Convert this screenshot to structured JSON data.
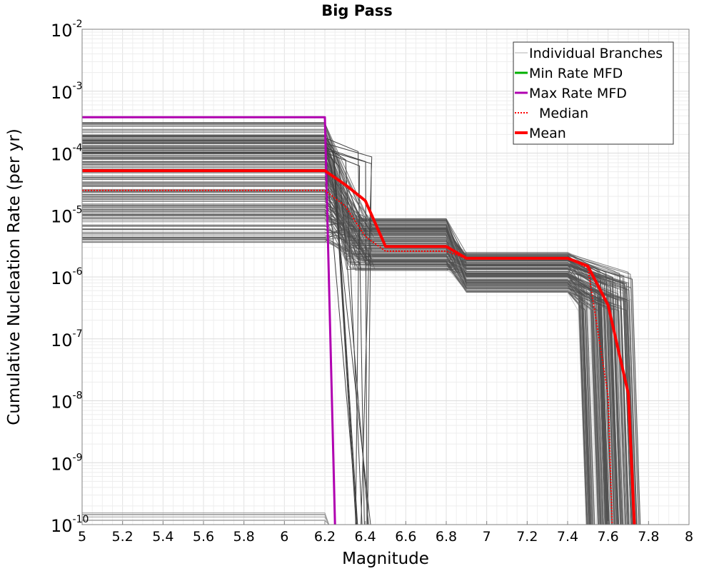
{
  "chart_data": {
    "type": "line",
    "title": "Big Pass",
    "xlabel": "Magnitude",
    "ylabel": "Cumulative Nucleation Rate (per yr)",
    "xlim": [
      5,
      8
    ],
    "ylim_log10": [
      -10,
      -2
    ],
    "yscale": "log",
    "grid": true,
    "legend_position": "top-right",
    "x_ticks": [
      {
        "value": 5.0,
        "label": "5"
      },
      {
        "value": 5.2,
        "label": "5.2"
      },
      {
        "value": 5.4,
        "label": "5.4"
      },
      {
        "value": 5.6,
        "label": "5.6"
      },
      {
        "value": 5.8,
        "label": "5.8"
      },
      {
        "value": 6.0,
        "label": "6"
      },
      {
        "value": 6.2,
        "label": "6.2"
      },
      {
        "value": 6.4,
        "label": "6.4"
      },
      {
        "value": 6.6,
        "label": "6.6"
      },
      {
        "value": 6.8,
        "label": "6.8"
      },
      {
        "value": 7.0,
        "label": "7"
      },
      {
        "value": 7.2,
        "label": "7.2"
      },
      {
        "value": 7.4,
        "label": "7.4"
      },
      {
        "value": 7.6,
        "label": "7.6"
      },
      {
        "value": 7.8,
        "label": "7.8"
      },
      {
        "value": 8.0,
        "label": "8"
      }
    ],
    "y_ticks": [
      {
        "exp": -2,
        "base": "10",
        "sup": "-2"
      },
      {
        "exp": -3,
        "base": "10",
        "sup": "-3"
      },
      {
        "exp": -4,
        "base": "10",
        "sup": "-4"
      },
      {
        "exp": -5,
        "base": "10",
        "sup": "-5"
      },
      {
        "exp": -6,
        "base": "10",
        "sup": "-6"
      },
      {
        "exp": -7,
        "base": "10",
        "sup": "-7"
      },
      {
        "exp": -8,
        "base": "10",
        "sup": "-8"
      },
      {
        "exp": -9,
        "base": "10",
        "sup": "-9"
      },
      {
        "exp": -10,
        "base": "10",
        "sup": "-10"
      }
    ],
    "legend": [
      {
        "key": "branches",
        "label": "Individual Branches",
        "color": "#b0b0b0",
        "style": "thin"
      },
      {
        "key": "min",
        "label": "Min Rate MFD",
        "color": "#00b000",
        "style": "solid"
      },
      {
        "key": "max",
        "label": "Max Rate MFD",
        "color": "#b000b0",
        "style": "solid"
      },
      {
        "key": "median",
        "label": "Median",
        "color": "#ff0000",
        "style": "dotted"
      },
      {
        "key": "mean",
        "label": "Mean",
        "color": "#ff0000",
        "style": "thick"
      }
    ],
    "series": [
      {
        "name": "Max Rate MFD",
        "color": "#b000b0",
        "points": [
          [
            5.0,
            0.00038
          ],
          [
            6.2,
            0.00038
          ],
          [
            6.25,
            1e-10
          ]
        ]
      },
      {
        "name": "Mean",
        "color": "#ff0000",
        "points": [
          [
            5.0,
            5.2e-05
          ],
          [
            6.2,
            5.2e-05
          ],
          [
            6.3,
            3.1e-05
          ],
          [
            6.4,
            1.7e-05
          ],
          [
            6.5,
            3.1e-06
          ],
          [
            6.8,
            3.1e-06
          ],
          [
            6.9,
            2e-06
          ],
          [
            7.4,
            2e-06
          ],
          [
            7.5,
            1.5e-06
          ],
          [
            7.6,
            3.5e-07
          ],
          [
            7.7,
            1.3e-08
          ],
          [
            7.73,
            1e-10
          ]
        ]
      },
      {
        "name": "Median",
        "color": "#ff0000",
        "points": [
          [
            5.0,
            2.5e-05
          ],
          [
            6.2,
            2.5e-05
          ],
          [
            6.3,
            1.4e-05
          ],
          [
            6.4,
            4.5e-06
          ],
          [
            6.5,
            2.6e-06
          ],
          [
            6.8,
            2.6e-06
          ],
          [
            6.9,
            2e-06
          ],
          [
            7.4,
            2e-06
          ],
          [
            7.5,
            1.4e-06
          ],
          [
            7.6,
            1.2e-08
          ],
          [
            7.62,
            1e-10
          ]
        ]
      }
    ]
  }
}
